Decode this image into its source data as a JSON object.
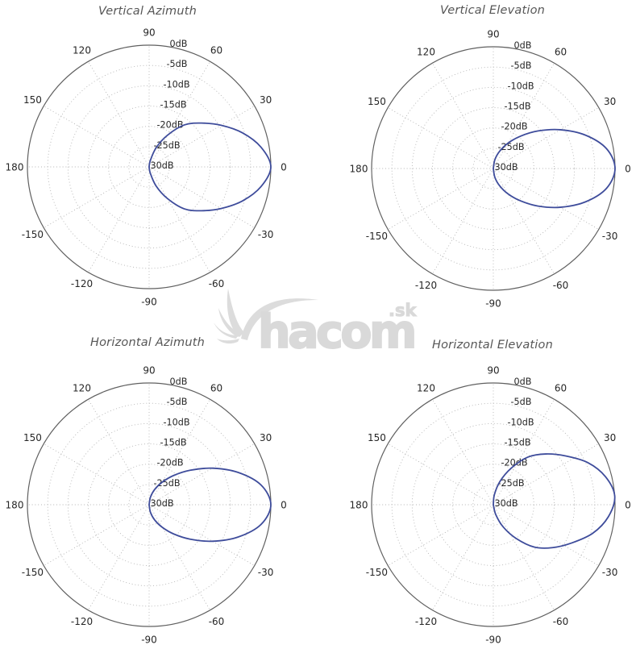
{
  "style": {
    "background": "#ffffff",
    "curve_color": "#3e4c9b",
    "grid_color": "#b4b4b4",
    "axis_color": "#606060",
    "tick_label_color": "#262626",
    "title_color": "#565656",
    "watermark_color": "#d9d9d9"
  },
  "watermark": {
    "name": "hacom",
    "suffix": ".sk"
  },
  "chart_data": [
    {
      "type": "polar",
      "title": "Vertical Azimuth",
      "units": "dB",
      "grid": "dotted",
      "r_axis": {
        "min_db": -30,
        "max_db": 0,
        "ring_step_db": 5,
        "tick_labels": [
          "0dB",
          "-5dB",
          "-10dB",
          "-15dB",
          "-20dB",
          "-25dB",
          "30dB"
        ]
      },
      "theta_axis": {
        "grid_step_deg": 30,
        "tick_angles_deg": [
          90,
          60,
          30,
          0,
          -30,
          -60,
          -90,
          -120,
          -150,
          180,
          150,
          120
        ],
        "tick_labels": [
          "90",
          "60",
          "30",
          "0",
          "-30",
          "-60",
          "-90",
          "-120",
          "-150",
          "180",
          "150",
          "120"
        ]
      },
      "series": [
        {
          "name": "gain pattern",
          "color": "#3e4c9b",
          "symmetric_about_0deg": true,
          "tilt_deg": 0,
          "angles_deg": [
            0,
            10,
            20,
            30,
            40,
            50,
            60,
            70,
            80,
            90
          ],
          "gain_db": [
            0,
            -2,
            -5.5,
            -9.5,
            -13.2,
            -16.5,
            -21,
            -25,
            -28.5,
            -30
          ]
        }
      ]
    },
    {
      "type": "polar",
      "title": "Vertical Elevation",
      "units": "dB",
      "grid": "dotted",
      "r_axis": {
        "min_db": -30,
        "max_db": 0,
        "ring_step_db": 5,
        "tick_labels": [
          "0dB",
          "-5dB",
          "-10dB",
          "-15dB",
          "-20dB",
          "-25dB",
          "30dB"
        ]
      },
      "theta_axis": {
        "grid_step_deg": 30,
        "tick_angles_deg": [
          90,
          60,
          30,
          0,
          -30,
          -60,
          -90,
          -120,
          -150,
          180,
          150,
          120
        ],
        "tick_labels": [
          "90",
          "60",
          "30",
          "0",
          "-30",
          "-60",
          "-90",
          "-120",
          "-150",
          "180",
          "150",
          "120"
        ]
      },
      "series": [
        {
          "name": "gain pattern",
          "color": "#3e4c9b",
          "symmetric_about_0deg": true,
          "tilt_deg": 0,
          "angles_deg": [
            0,
            10,
            20,
            30,
            40,
            50,
            60,
            70,
            80,
            90
          ],
          "gain_db": [
            0,
            -1.7,
            -5.9,
            -10.9,
            -15.6,
            -19.6,
            -22.8,
            -25.5,
            -27.8,
            -30
          ]
        }
      ]
    },
    {
      "type": "polar",
      "title": "Horizontal Azimuth",
      "units": "dB",
      "grid": "dotted",
      "r_axis": {
        "min_db": -30,
        "max_db": 0,
        "ring_step_db": 5,
        "tick_labels": [
          "0dB",
          "-5dB",
          "-10dB",
          "-15dB",
          "-20dB",
          "-25dB",
          "30dB"
        ]
      },
      "theta_axis": {
        "grid_step_deg": 30,
        "tick_angles_deg": [
          90,
          60,
          30,
          0,
          -30,
          -60,
          -90,
          -120,
          -150,
          180,
          150,
          120
        ],
        "tick_labels": [
          "90",
          "60",
          "30",
          "0",
          "-30",
          "-60",
          "-90",
          "-120",
          "-150",
          "180",
          "150",
          "120"
        ]
      },
      "series": [
        {
          "name": "gain pattern",
          "color": "#3e4c9b",
          "symmetric_about_0deg": true,
          "tilt_deg": 0,
          "angles_deg": [
            0,
            10,
            20,
            30,
            40,
            50,
            60,
            70,
            80,
            90
          ],
          "gain_db": [
            0,
            -2,
            -6.7,
            -12,
            -16.8,
            -20.6,
            -23.6,
            -26,
            -28.1,
            -30
          ]
        }
      ]
    },
    {
      "type": "polar",
      "title": "Horizontal Elevation",
      "units": "dB",
      "grid": "dotted",
      "r_axis": {
        "min_db": -30,
        "max_db": 0,
        "ring_step_db": 5,
        "tick_labels": [
          "0dB",
          "-5dB",
          "-10dB",
          "-15dB",
          "-20dB",
          "-25dB",
          "30dB"
        ]
      },
      "theta_axis": {
        "grid_step_deg": 30,
        "tick_angles_deg": [
          90,
          60,
          30,
          0,
          -30,
          -60,
          -90,
          -120,
          -150,
          180,
          150,
          120
        ],
        "tick_labels": [
          "90",
          "60",
          "30",
          "0",
          "-30",
          "-60",
          "-90",
          "-120",
          "-150",
          "180",
          "150",
          "120"
        ]
      },
      "series": [
        {
          "name": "gain pattern",
          "color": "#3e4c9b",
          "symmetric_about_0deg": true,
          "tilt_deg": 4,
          "angles_deg": [
            0,
            10,
            20,
            30,
            40,
            50,
            60,
            70,
            80,
            90
          ],
          "gain_db": [
            0,
            -1.5,
            -4.5,
            -8.5,
            -12,
            -15.5,
            -20,
            -24,
            -27.5,
            -30
          ]
        }
      ]
    }
  ]
}
